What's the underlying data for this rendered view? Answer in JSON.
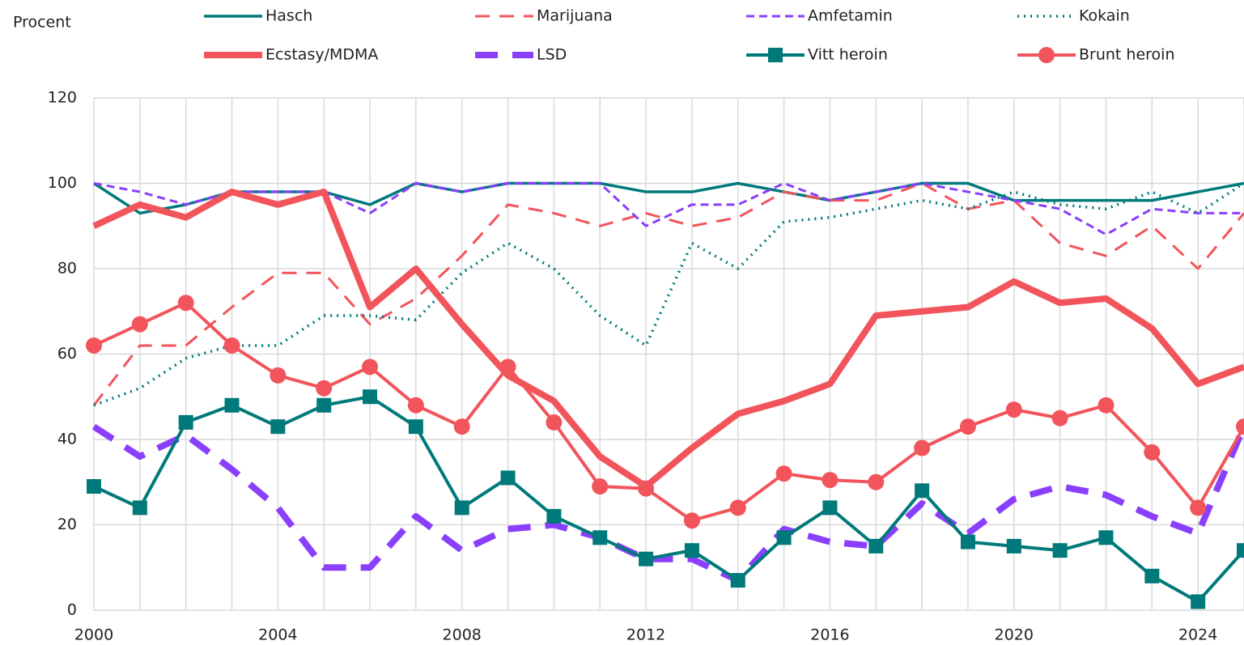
{
  "chart_data": {
    "type": "line",
    "y_label": "Procent",
    "x": [
      2000,
      2001,
      2002,
      2003,
      2004,
      2005,
      2006,
      2007,
      2008,
      2009,
      2010,
      2011,
      2012,
      2013,
      2014,
      2015,
      2016,
      2017,
      2018,
      2019,
      2020,
      2021,
      2022,
      2023,
      2024,
      2025
    ],
    "xlim": [
      2000,
      2025
    ],
    "xticks": [
      2000,
      2004,
      2008,
      2012,
      2016,
      2020,
      2024
    ],
    "ylim": [
      0,
      120
    ],
    "yticks": [
      0,
      20,
      40,
      60,
      80,
      100,
      120
    ],
    "grid": true,
    "series": [
      {
        "name": "Hasch",
        "color": "#00797a",
        "width": 3.5,
        "dash": "none",
        "marker": "none",
        "values": [
          100,
          93,
          95,
          98,
          98,
          98,
          95,
          100,
          98,
          100,
          100,
          100,
          98,
          98,
          100,
          98,
          96,
          98,
          100,
          100,
          96,
          96,
          96,
          96,
          98,
          100
        ]
      },
      {
        "name": "Marijuana",
        "color": "#f2545b",
        "width": 3,
        "dash": "18 12",
        "marker": "none",
        "values": [
          48,
          62,
          62,
          71,
          79,
          79,
          67,
          73,
          83,
          95,
          93,
          90,
          93,
          90,
          92,
          98,
          96,
          96,
          100,
          94,
          96,
          86,
          83,
          90,
          80,
          93
        ]
      },
      {
        "name": "Amfetamin",
        "color": "#8a3ffc",
        "width": 3,
        "dash": "10 6",
        "marker": "none",
        "values": [
          100,
          98,
          95,
          98,
          98,
          98,
          93,
          100,
          98,
          100,
          100,
          100,
          90,
          95,
          95,
          100,
          96,
          98,
          100,
          98,
          96,
          94,
          88,
          94,
          93,
          93
        ]
      },
      {
        "name": "Kokain",
        "color": "#00797a",
        "width": 3.5,
        "dash": "2 6",
        "marker": "none",
        "values": [
          48,
          52,
          59,
          62,
          62,
          69,
          69,
          68,
          79,
          86,
          80,
          69,
          62,
          86,
          80,
          91,
          92,
          94,
          96,
          94,
          98,
          95,
          94,
          98,
          93,
          100
        ]
      },
      {
        "name": "Ecstasy/MDMA",
        "color": "#f2545b",
        "width": 8,
        "dash": "none",
        "marker": "none",
        "values": [
          90,
          95,
          92,
          98,
          95,
          98,
          71,
          80,
          67,
          55,
          49,
          36,
          29,
          38,
          46,
          49,
          53,
          69,
          70,
          71,
          77,
          72,
          73,
          66,
          53,
          57
        ]
      },
      {
        "name": "LSD",
        "color": "#8a3ffc",
        "width": 8,
        "dash": "28 18",
        "marker": "none",
        "values": [
          43,
          36,
          41,
          33,
          24,
          10,
          10,
          22,
          14,
          19,
          20,
          17,
          12,
          12,
          7,
          19,
          16,
          15,
          25,
          18,
          26,
          29,
          27,
          22,
          18,
          43
        ]
      },
      {
        "name": "Vitt heroin",
        "color": "#00797a",
        "width": 4,
        "dash": "none",
        "marker": "square",
        "values": [
          29,
          24,
          44,
          48,
          43,
          48,
          50,
          43,
          24,
          31,
          22,
          17,
          12,
          14,
          7,
          17,
          24,
          15,
          28,
          16,
          15,
          14,
          17,
          8,
          2,
          14
        ]
      },
      {
        "name": "Brunt heroin",
        "color": "#f2545b",
        "width": 4,
        "dash": "none",
        "marker": "circle",
        "values": [
          62,
          67,
          72,
          62,
          55,
          52,
          57,
          48,
          43,
          57,
          44,
          29,
          28.5,
          21,
          24,
          32,
          30.5,
          30,
          38,
          43,
          47,
          45,
          48,
          37,
          24,
          43
        ]
      }
    ]
  }
}
